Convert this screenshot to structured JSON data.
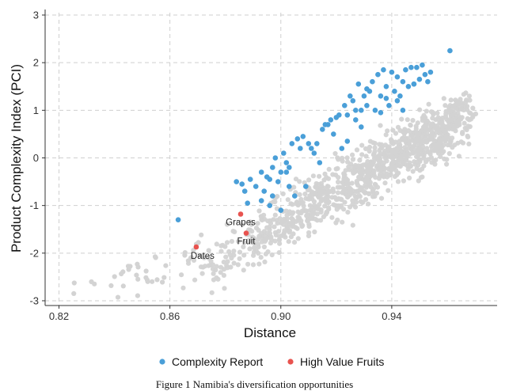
{
  "chart_data": {
    "type": "scatter",
    "xlabel": "Distance",
    "ylabel": "Product Complexity Index (PCI)",
    "xlim": [
      0.815,
      0.978
    ],
    "ylim": [
      -3.1,
      3.05
    ],
    "xticks": [
      0.82,
      0.86,
      0.9,
      0.94
    ],
    "xtick_labels": [
      "0.82",
      "0.86",
      "0.90",
      "0.94"
    ],
    "yticks": [
      -3,
      -2,
      -1,
      0,
      1,
      2,
      3
    ],
    "ytick_labels": [
      "-3",
      "-2",
      "-1",
      "0",
      "1",
      "2",
      "3"
    ],
    "grid": true,
    "legend_position": "bottom",
    "background_points_color": "#d3d3d3",
    "series": [
      {
        "name": "Complexity Report",
        "color": "#4a9fd8",
        "x": [
          0.863,
          0.884,
          0.886,
          0.889,
          0.887,
          0.888,
          0.891,
          0.893,
          0.894,
          0.895,
          0.896,
          0.897,
          0.897,
          0.898,
          0.899,
          0.9,
          0.9,
          0.901,
          0.902,
          0.903,
          0.903,
          0.904,
          0.905,
          0.906,
          0.907,
          0.908,
          0.909,
          0.91,
          0.912,
          0.913,
          0.914,
          0.915,
          0.916,
          0.918,
          0.919,
          0.92,
          0.921,
          0.922,
          0.923,
          0.924,
          0.925,
          0.926,
          0.927,
          0.928,
          0.929,
          0.93,
          0.931,
          0.932,
          0.933,
          0.934,
          0.935,
          0.936,
          0.937,
          0.938,
          0.939,
          0.94,
          0.941,
          0.942,
          0.943,
          0.944,
          0.945,
          0.946,
          0.947,
          0.948,
          0.949,
          0.95,
          0.951,
          0.952,
          0.953,
          0.954,
          0.961,
          0.893,
          0.896,
          0.902,
          0.911,
          0.917,
          0.927,
          0.931,
          0.938,
          0.944,
          0.948,
          0.936,
          0.942,
          0.929,
          0.924
        ],
        "y": [
          -1.3,
          -0.5,
          -0.55,
          -0.45,
          -0.7,
          -0.95,
          -0.6,
          -0.3,
          -0.7,
          -0.4,
          -1.0,
          -0.2,
          -0.8,
          0.0,
          -0.5,
          -0.3,
          -1.1,
          0.1,
          -0.1,
          -0.2,
          -0.6,
          0.3,
          -0.8,
          0.4,
          0.2,
          0.45,
          -0.6,
          0.3,
          0.1,
          0.3,
          -0.1,
          0.6,
          0.7,
          0.8,
          0.5,
          0.85,
          0.9,
          0.2,
          1.1,
          0.9,
          1.3,
          1.2,
          0.8,
          1.55,
          1.0,
          1.3,
          1.1,
          1.4,
          1.6,
          1.0,
          1.75,
          1.3,
          1.85,
          1.5,
          1.1,
          1.8,
          1.4,
          1.7,
          1.3,
          1.6,
          1.85,
          1.5,
          1.9,
          1.55,
          1.9,
          1.65,
          1.95,
          1.75,
          1.6,
          1.8,
          2.25,
          -0.9,
          -0.45,
          -0.3,
          0.2,
          0.7,
          1.0,
          1.45,
          1.25,
          1.0,
          1.55,
          0.95,
          1.2,
          0.65,
          0.35
        ]
      },
      {
        "name": "High Value Fruits",
        "color": "#e8534f",
        "x": [
          0.8695,
          0.8855,
          0.8875
        ],
        "y": [
          -1.87,
          -1.18,
          -1.58
        ]
      }
    ],
    "annotations": [
      {
        "text": "Dates",
        "x": 0.8695,
        "y": -1.87
      },
      {
        "text": "Grapes",
        "x": 0.8855,
        "y": -1.18
      },
      {
        "text": "Fruit",
        "x": 0.8875,
        "y": -1.58
      }
    ]
  },
  "caption": "Figure 1 Namibia's diversification opportunities"
}
